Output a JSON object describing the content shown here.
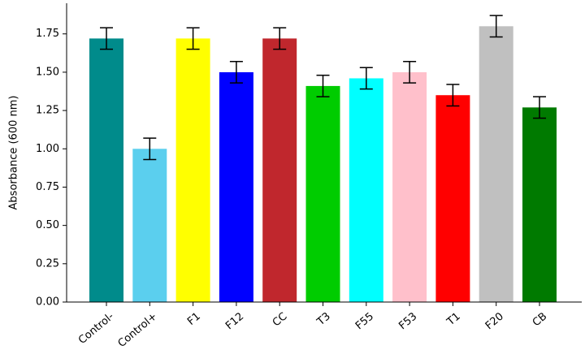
{
  "chart_data": {
    "type": "bar",
    "title": "",
    "xlabel": "",
    "ylabel": "Absorbance (600 nm)",
    "ylim": [
      0,
      1.95
    ],
    "yticks": [
      "0.00",
      "0.25",
      "0.50",
      "0.75",
      "1.00",
      "1.25",
      "1.50",
      "1.75"
    ],
    "grid": false,
    "legend": "none",
    "categories": [
      "Control-",
      "Control+",
      "F1",
      "F12",
      "CC",
      "T3",
      "F55",
      "F53",
      "T1",
      "F20",
      "CB"
    ],
    "values": [
      1.72,
      1.0,
      1.72,
      1.5,
      1.72,
      1.41,
      1.46,
      1.5,
      1.35,
      1.8,
      1.27
    ],
    "errors": [
      0.07,
      0.07,
      0.07,
      0.07,
      0.07,
      0.07,
      0.07,
      0.07,
      0.07,
      0.07,
      0.07
    ],
    "colors": [
      "#008b8b",
      "#5bcfee",
      "#ffff00",
      "#0000ff",
      "#c0272d",
      "#00cc00",
      "#00ffff",
      "#ffc0cb",
      "#ff0000",
      "#c0c0c0",
      "#007a00"
    ]
  }
}
